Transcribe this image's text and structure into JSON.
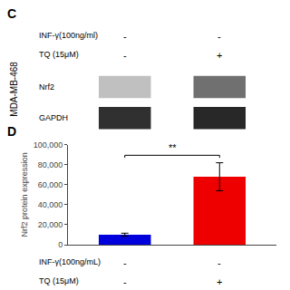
{
  "chart_data": {
    "type": "bar",
    "panel_label": "D",
    "categories": [
      null,
      null
    ],
    "values": [
      10000,
      68000
    ],
    "errors": [
      1500,
      14000
    ],
    "colors": [
      "#0000dd",
      "#ee0000"
    ],
    "ylabel": "Nrf2 protein expression",
    "ylim": [
      0,
      100000
    ],
    "yticks": [
      0,
      {
        "value": 20000,
        "label": "20,000"
      },
      {
        "value": 40000,
        "label": "40,000"
      },
      {
        "value": 60000,
        "label": "60,000"
      },
      {
        "value": 80000,
        "label": "80,000"
      },
      {
        "value": 100000,
        "label": "100,000"
      }
    ],
    "grid": false,
    "tick_labels": "y",
    "significance": {
      "label": "**",
      "y": 87000
    },
    "conditions": [
      {
        "label": "INF-γ(100ng/mL)",
        "signs": [
          "-",
          "-"
        ]
      },
      {
        "label": "TQ (15μM)",
        "signs": [
          "-",
          "+"
        ]
      }
    ],
    "side_label": "MDA-MB-468",
    "border_color": "#ee2222",
    "background_color": "#ffffff",
    "blot": {
      "panel_label": "C",
      "conditions": [
        {
          "label": "INF-γ(100ng/ml)",
          "signs": [
            "-",
            "-"
          ]
        },
        {
          "label": "TQ (15μM)",
          "signs": [
            "-",
            "+"
          ]
        }
      ],
      "rows": [
        {
          "label": "Nrf2",
          "colors": [
            "#c0c0c0",
            "#707070"
          ]
        },
        {
          "label": "GAPDH",
          "colors": [
            "#303030",
            "#282828"
          ]
        }
      ]
    }
  }
}
